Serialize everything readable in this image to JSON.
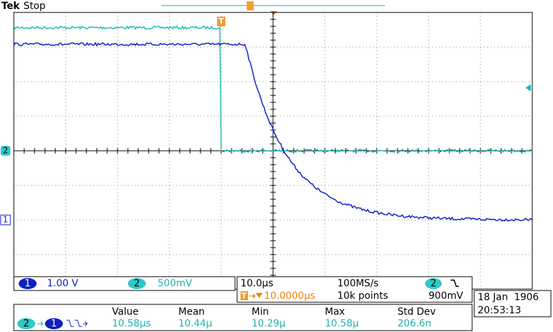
{
  "header": {
    "brand": "Tek",
    "status": "Stop"
  },
  "markers": {
    "trigger": "T",
    "ch2": "2",
    "ch1": "1"
  },
  "channels": [
    {
      "number": "1",
      "scale": "1.00 V"
    },
    {
      "number": "2",
      "scale": "500mV"
    }
  ],
  "timebase": {
    "scale": "10.0µs",
    "delay_icon": "T",
    "delay": "10.0000µs",
    "sample_rate": "100MS/s",
    "record_length": "10k points",
    "trigger_source": "2",
    "trigger_level": "900mV"
  },
  "clock": {
    "date": "18 Jan  1906",
    "time": "20:53:13"
  },
  "measurement": {
    "source_from": "2",
    "source_to": "1",
    "headers": [
      "Value",
      "Mean",
      "Min",
      "Max",
      "Std Dev"
    ],
    "values": [
      "10.58µs",
      "10.44µ",
      "10.29µ",
      "10.58µ",
      "206.6n"
    ]
  }
}
